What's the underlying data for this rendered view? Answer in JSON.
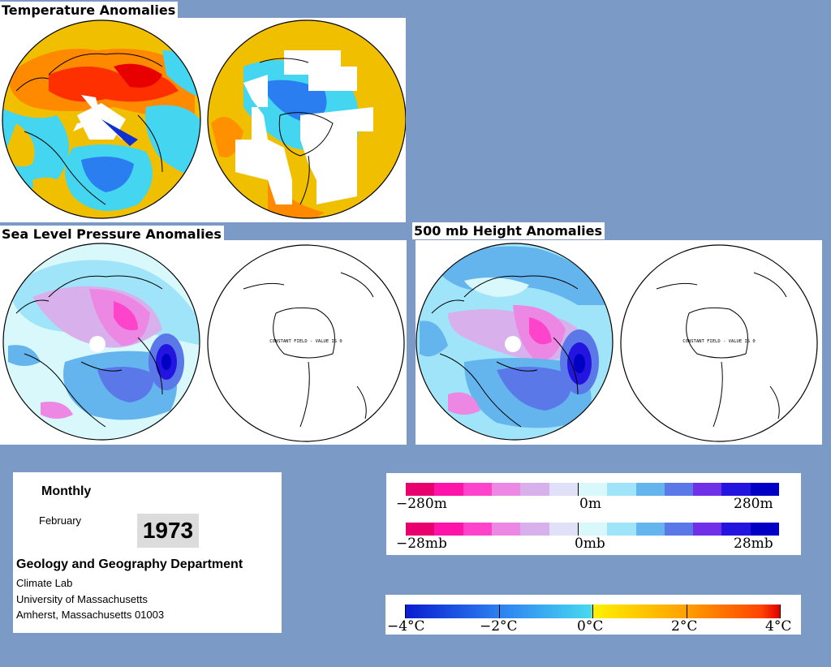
{
  "titles": {
    "temperature": "Temperature Anomalies",
    "slp": "Sea Level Pressure Anomalies",
    "height500": "500 mb Height Anomalies"
  },
  "maps": {
    "constant_field_note": "CONSTANT FIELD - VALUE IS 0"
  },
  "info": {
    "period": "Monthly",
    "month": "February",
    "year": "1973",
    "department": "Geology and Geography Department",
    "lab": "Climate Lab",
    "university": "University of Massachusetts",
    "address": "Amherst, Massachusetts 01003"
  },
  "legends": {
    "height": {
      "min": "−280m",
      "mid": "0m",
      "max": "280m"
    },
    "pressure": {
      "min": "−28mb",
      "mid": "0mb",
      "max": "28mb"
    },
    "temperature": {
      "t0": "−4°C",
      "t1": "−2°C",
      "t2": "0°C",
      "t3": "2°C",
      "t4": "4°C"
    }
  },
  "colors": {
    "background": "#7b9ac6",
    "pressure_scale": [
      "#e8006e",
      "#ff14aa",
      "#ff44cc",
      "#ec88e4",
      "#d8b0ec",
      "#e0e0f8",
      "#d8f8fc",
      "#a0e4fa",
      "#64b4ee",
      "#5a78e8",
      "#7030e8",
      "#2414e0",
      "#0000c4"
    ],
    "temperature_scale": [
      "#0a1cd0",
      "#2c80f0",
      "#48d8f0",
      "#fff000",
      "#ffa000",
      "#ff4400",
      "#e00000"
    ]
  }
}
